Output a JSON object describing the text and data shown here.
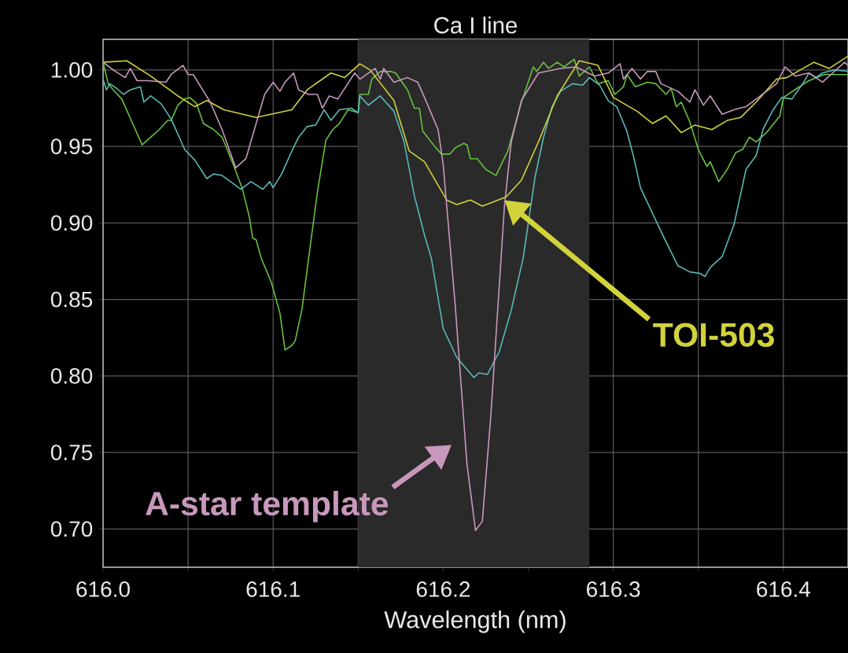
{
  "chart_data": {
    "type": "line",
    "title": "Ca I line",
    "xlabel": "Wavelength (nm)",
    "xlim": [
      616.0,
      616.438
    ],
    "ylim": [
      0.675,
      1.02
    ],
    "xticks": [
      {
        "value": 616.0,
        "label": "616.0"
      },
      {
        "value": 616.05,
        "label": null
      },
      {
        "value": 616.1,
        "label": "616.1"
      },
      {
        "value": 616.15,
        "label": null
      },
      {
        "value": 616.2,
        "label": "616.2"
      },
      {
        "value": 616.25,
        "label": null
      },
      {
        "value": 616.3,
        "label": "616.3"
      },
      {
        "value": 616.35,
        "label": null
      },
      {
        "value": 616.4,
        "label": "616.4"
      }
    ],
    "yticks": [
      {
        "value": 0.7,
        "label": "0.70"
      },
      {
        "value": 0.75,
        "label": "0.75"
      },
      {
        "value": 0.8,
        "label": "0.80"
      },
      {
        "value": 0.85,
        "label": "0.85"
      },
      {
        "value": 0.9,
        "label": "0.90"
      },
      {
        "value": 0.95,
        "label": "0.95"
      },
      {
        "value": 1.0,
        "label": "1.00"
      }
    ],
    "grid": true,
    "marker": "none",
    "line_style": "solid",
    "bands": [
      {
        "axis": "x",
        "from": 616.15,
        "to": 616.286,
        "color": "#2a2a2a"
      }
    ],
    "series": [
      {
        "color": "#68c040",
        "x": [
          616.0,
          616.003,
          616.006,
          616.011,
          616.017,
          616.023,
          616.028,
          616.033,
          616.038,
          616.04,
          616.044,
          616.048,
          616.051,
          616.055,
          616.059,
          616.065,
          616.07,
          616.073,
          616.077,
          616.082,
          616.086,
          616.088,
          616.09,
          616.093,
          616.099,
          616.104,
          616.107,
          616.111,
          616.113,
          616.117,
          616.121,
          616.126,
          616.131,
          616.135,
          616.139,
          616.144,
          616.15,
          616.151,
          616.156,
          616.158,
          616.163,
          616.169,
          616.172,
          616.179,
          616.183,
          616.186,
          616.188,
          616.195,
          616.199,
          616.204,
          616.207,
          616.212,
          616.214,
          616.216,
          616.22,
          616.225,
          616.231,
          616.238,
          616.246,
          616.253,
          616.255,
          616.259,
          616.262,
          616.267,
          616.271,
          616.277,
          616.28,
          616.286,
          616.291,
          616.297,
          616.301,
          616.306,
          616.308,
          616.313,
          616.32,
          616.325,
          616.331,
          616.334,
          616.337,
          616.34,
          616.345,
          616.35,
          616.355,
          616.357,
          616.362,
          616.367,
          616.372,
          616.376,
          616.38,
          616.384,
          616.39,
          616.398,
          616.4,
          616.408,
          616.415,
          616.424,
          616.438
        ],
        "values": [
          1.005,
          0.991,
          0.987,
          0.981,
          0.966,
          0.951,
          0.956,
          0.961,
          0.967,
          0.967,
          0.977,
          0.981,
          0.982,
          0.978,
          0.965,
          0.961,
          0.956,
          0.948,
          0.937,
          0.922,
          0.904,
          0.89,
          0.889,
          0.877,
          0.861,
          0.841,
          0.817,
          0.82,
          0.823,
          0.844,
          0.878,
          0.92,
          0.954,
          0.961,
          0.965,
          0.974,
          0.972,
          0.984,
          0.984,
          0.994,
          0.999,
          0.999,
          0.998,
          0.987,
          0.975,
          0.975,
          0.96,
          0.95,
          0.945,
          0.945,
          0.949,
          0.952,
          0.951,
          0.942,
          0.942,
          0.935,
          0.931,
          0.947,
          0.979,
          1.002,
          0.999,
          1.005,
          1.001,
          1.005,
          1.002,
          1.007,
          0.996,
          1.002,
          0.991,
          0.993,
          0.984,
          0.989,
          0.997,
          0.989,
          0.992,
          0.991,
          0.984,
          0.988,
          0.976,
          0.979,
          0.966,
          0.948,
          0.937,
          0.94,
          0.927,
          0.935,
          0.946,
          0.948,
          0.956,
          0.953,
          0.959,
          0.97,
          0.982,
          0.988,
          0.993,
          0.997,
          0.997
        ]
      },
      {
        "color": "#5ab8b8",
        "x": [
          616.0,
          616.002,
          616.004,
          616.008,
          616.012,
          616.016,
          616.022,
          616.024,
          616.028,
          616.034,
          616.04,
          616.048,
          616.054,
          616.061,
          616.065,
          616.07,
          616.075,
          616.081,
          616.087,
          616.094,
          616.098,
          616.1,
          616.105,
          616.111,
          616.115,
          616.12,
          616.125,
          616.13,
          616.134,
          616.139,
          616.146,
          616.15,
          616.151,
          616.156,
          616.163,
          616.171,
          616.177,
          616.183,
          616.189,
          616.193,
          616.2,
          616.208,
          616.218,
          616.221,
          616.226,
          616.233,
          616.24,
          616.247,
          616.254,
          616.259,
          616.264,
          616.269,
          616.276,
          616.282,
          616.286,
          616.292,
          616.297,
          616.302,
          616.308,
          616.312,
          616.316,
          616.324,
          616.33,
          616.338,
          616.345,
          616.351,
          616.354,
          616.357,
          616.364,
          616.371,
          616.378,
          616.384,
          616.388,
          616.394,
          616.399,
          616.405,
          616.412,
          616.415,
          616.419,
          616.423,
          616.43,
          616.438
        ],
        "values": [
          0.994,
          0.987,
          0.991,
          0.988,
          0.984,
          0.987,
          0.989,
          0.979,
          0.983,
          0.978,
          0.968,
          0.948,
          0.941,
          0.929,
          0.932,
          0.931,
          0.927,
          0.922,
          0.927,
          0.922,
          0.927,
          0.923,
          0.932,
          0.947,
          0.956,
          0.963,
          0.964,
          0.974,
          0.967,
          0.974,
          0.975,
          0.972,
          0.983,
          0.977,
          0.983,
          0.973,
          0.953,
          0.918,
          0.892,
          0.877,
          0.831,
          0.812,
          0.799,
          0.802,
          0.801,
          0.816,
          0.843,
          0.877,
          0.93,
          0.956,
          0.976,
          0.986,
          0.991,
          0.99,
          0.995,
          0.99,
          0.98,
          0.976,
          0.96,
          0.943,
          0.923,
          0.904,
          0.89,
          0.872,
          0.868,
          0.867,
          0.865,
          0.871,
          0.878,
          0.899,
          0.935,
          0.944,
          0.961,
          0.974,
          0.982,
          0.981,
          0.992,
          0.998,
          0.995,
          0.998,
          1.0,
          0.999
        ]
      },
      {
        "name": "TOI-503",
        "color": "#d2d23c",
        "x": [
          616.0,
          616.014,
          616.028,
          616.044,
          616.054,
          616.061,
          616.071,
          616.09,
          616.111,
          616.12,
          616.134,
          616.142,
          616.151,
          616.157,
          616.171,
          616.18,
          616.189,
          616.202,
          616.208,
          616.216,
          616.223,
          616.237,
          616.246,
          616.256,
          616.267,
          616.28,
          616.291,
          616.3,
          616.314,
          616.323,
          616.331,
          616.34,
          616.348,
          616.358,
          616.367,
          616.375,
          616.384,
          616.396,
          616.402,
          616.418,
          616.427,
          616.438
        ],
        "values": [
          1.005,
          1.006,
          0.996,
          0.983,
          0.976,
          0.98,
          0.974,
          0.969,
          0.974,
          0.987,
          0.998,
          0.995,
          1.004,
          1.0,
          0.98,
          0.947,
          0.94,
          0.915,
          0.912,
          0.915,
          0.911,
          0.917,
          0.928,
          0.953,
          0.983,
          1.006,
          1.003,
          0.982,
          0.973,
          0.965,
          0.97,
          0.959,
          0.964,
          0.961,
          0.967,
          0.969,
          0.979,
          0.994,
          0.995,
          1.005,
          1.001,
          1.009
        ]
      },
      {
        "name": "A-star template",
        "color": "#c898bc",
        "x": [
          616.0,
          616.006,
          616.013,
          616.016,
          616.02,
          616.026,
          616.037,
          616.04,
          616.047,
          616.05,
          616.053,
          616.063,
          616.07,
          616.078,
          616.084,
          616.09,
          616.095,
          616.1,
          616.104,
          616.107,
          616.112,
          616.115,
          616.121,
          616.126,
          616.129,
          616.133,
          616.138,
          616.148,
          616.151,
          616.16,
          616.163,
          616.165,
          616.171,
          616.179,
          616.185,
          616.189,
          616.197,
          616.2,
          616.207,
          616.214,
          616.219,
          616.223,
          616.228,
          616.236,
          616.24,
          616.246,
          616.256,
          616.269,
          616.278,
          616.289,
          616.297,
          616.304,
          616.306,
          616.311,
          616.316,
          616.32,
          616.325,
          616.328,
          616.338,
          616.345,
          616.348,
          616.353,
          616.357,
          616.364,
          616.371,
          616.378,
          616.384,
          616.39,
          616.396,
          616.401,
          616.407,
          616.415,
          616.423,
          616.429,
          616.436,
          616.438
        ],
        "values": [
          1.005,
          1.0,
          0.995,
          1.001,
          0.993,
          0.993,
          0.992,
          0.997,
          1.003,
          0.997,
          0.997,
          0.979,
          0.961,
          0.936,
          0.942,
          0.965,
          0.984,
          0.992,
          0.986,
          0.992,
          0.998,
          0.987,
          0.984,
          0.984,
          0.975,
          0.983,
          0.981,
          0.998,
          0.994,
          1.001,
          0.994,
          1.001,
          0.992,
          0.995,
          0.992,
          0.982,
          0.961,
          0.938,
          0.847,
          0.742,
          0.699,
          0.705,
          0.774,
          0.911,
          0.953,
          0.98,
          0.998,
          1.001,
          1.002,
          0.996,
          0.998,
          1.004,
          0.994,
          1.001,
          0.994,
          0.999,
          0.999,
          0.991,
          0.986,
          0.979,
          0.987,
          0.977,
          0.983,
          0.971,
          0.974,
          0.976,
          0.981,
          0.986,
          0.991,
          1.002,
          0.996,
          0.998,
          0.992,
          0.998,
          1.005,
          1.003
        ]
      }
    ]
  }
}
